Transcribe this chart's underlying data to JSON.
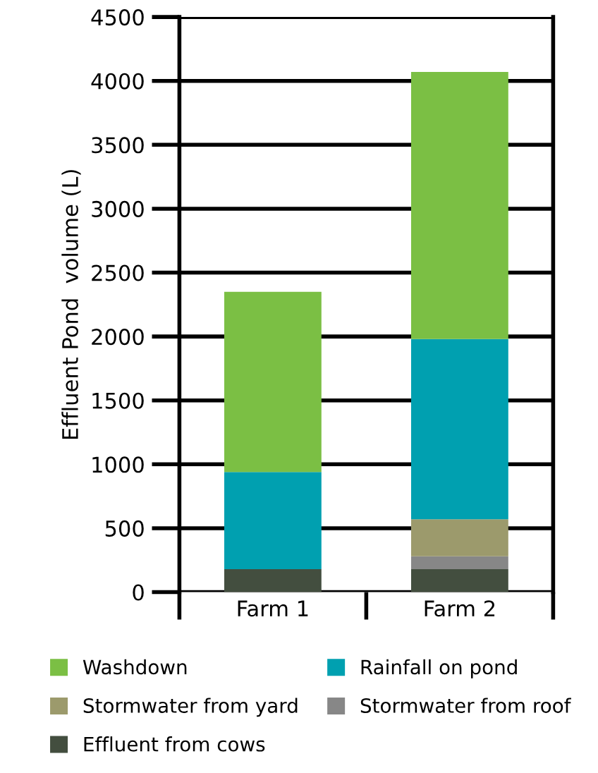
{
  "chart_data": {
    "type": "bar",
    "stacked": true,
    "ylabel": "Effluent Pond  volume (L)",
    "categories": [
      "Farm 1",
      "Farm 2"
    ],
    "series": [
      {
        "name": "Effluent from cows",
        "color": "#434e3f",
        "values": [
          180,
          180
        ]
      },
      {
        "name": "Stormwater from roof",
        "color": "#878787",
        "values": [
          0,
          100
        ]
      },
      {
        "name": "Stormwater from yard",
        "color": "#9c9a6c",
        "values": [
          0,
          290
        ]
      },
      {
        "name": "Rainfall on pond",
        "color": "#00a0b0",
        "values": [
          760,
          1410
        ]
      },
      {
        "name": "Washdown",
        "color": "#7bbf44",
        "values": [
          1410,
          2090
        ]
      }
    ],
    "ylim": [
      0,
      4500
    ],
    "yticks": [
      0,
      500,
      1000,
      1500,
      2000,
      2500,
      3000,
      3500,
      4000,
      4500
    ],
    "grid": "y",
    "legend": "bottom"
  }
}
